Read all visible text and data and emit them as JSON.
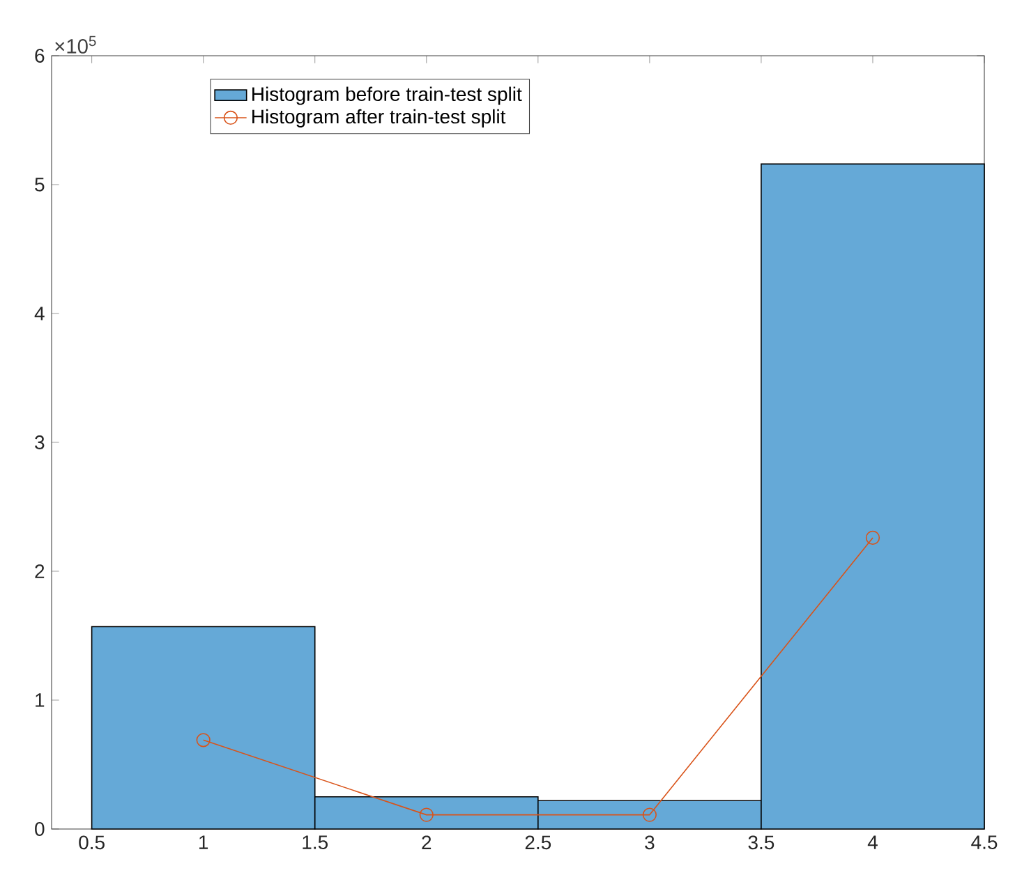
{
  "chart_data": {
    "type": "histogram",
    "bins": [
      0.5,
      1.5,
      2.5,
      3.5,
      4.5
    ],
    "series": [
      {
        "name": "Histogram before train-test split",
        "color": "#65a9d7",
        "values": [
          1.57,
          0.25,
          0.22,
          5.16
        ]
      },
      {
        "name": "Histogram after train-test split",
        "type": "line",
        "color": "#d95319",
        "marker": "circle",
        "x": [
          1,
          2,
          3,
          4
        ],
        "values": [
          0.69,
          0.11,
          0.11,
          2.26
        ]
      }
    ],
    "xlim": [
      0.32,
      4.5
    ],
    "xticks": [
      0.5,
      1,
      1.5,
      2,
      2.5,
      3,
      3.5,
      4,
      4.5
    ],
    "ylim": [
      0,
      6
    ],
    "yticks": [
      0,
      1,
      2,
      3,
      4,
      5,
      6
    ],
    "annotations": [
      "×10$^{5}$"
    ],
    "legend": "top left",
    "grid": false
  }
}
